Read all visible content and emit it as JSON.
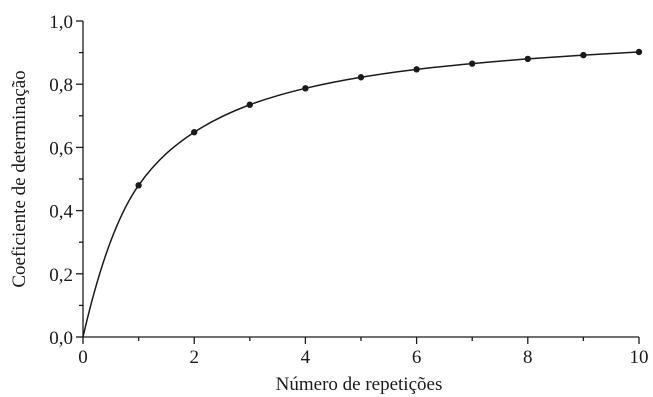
{
  "chart_data": {
    "type": "line",
    "title": "",
    "xlabel": "Número de repetições",
    "ylabel": "Coeficiente de determinação",
    "xlim": [
      0,
      10
    ],
    "ylim": [
      0,
      1.0
    ],
    "x_ticks": [
      "0",
      "2",
      "4",
      "6",
      "8",
      "10"
    ],
    "y_ticks": [
      "0,0",
      "0,2",
      "0,4",
      "0,6",
      "0,8",
      "1,0"
    ],
    "grid": false,
    "legend": "none",
    "series": [
      {
        "marker": "dot",
        "x": [
          1,
          2,
          3,
          4,
          5,
          6,
          7,
          8,
          9,
          10
        ],
        "y": [
          0.48,
          0.648,
          0.735,
          0.787,
          0.822,
          0.847,
          0.865,
          0.88,
          0.892,
          0.902
        ],
        "curve": "fitted"
      }
    ],
    "colors": {
      "ink": "#1a1a1a"
    }
  }
}
